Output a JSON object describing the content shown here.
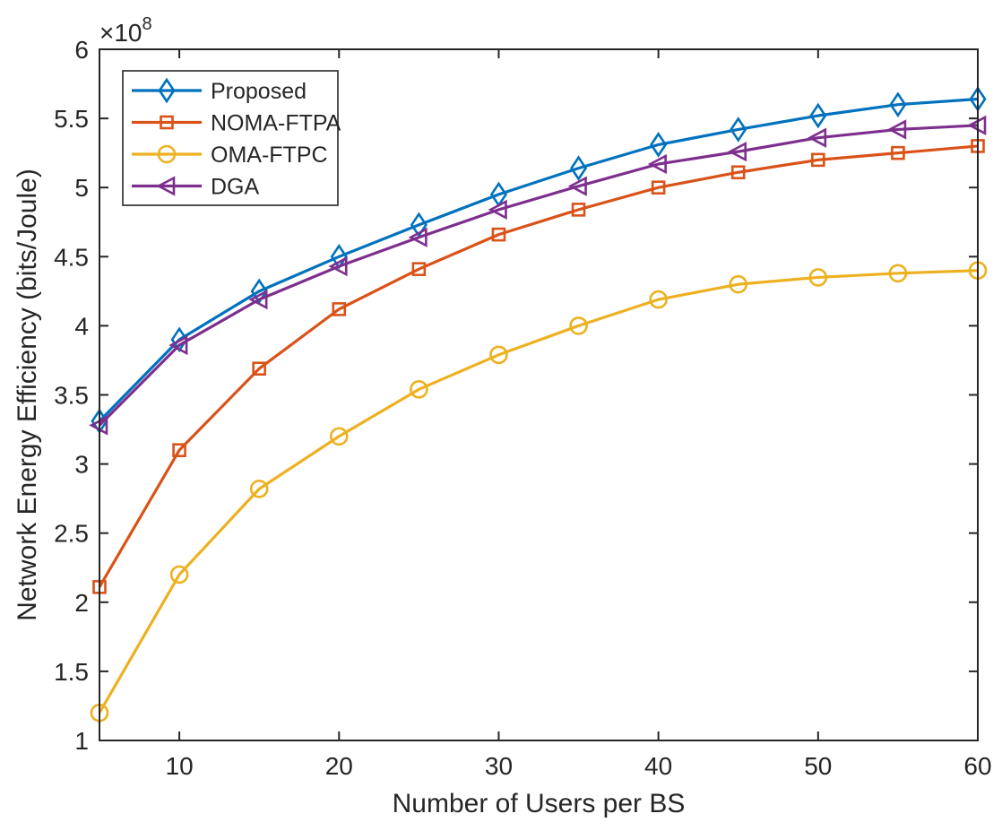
{
  "chart_data": {
    "type": "line",
    "title": "",
    "xlabel": "Number of Users per BS",
    "ylabel": "Network Energy Efficiency (bits/Joule)",
    "y_multiplier_label": "×10",
    "y_multiplier_exponent": "8",
    "xlim": [
      5,
      60
    ],
    "ylim": [
      1,
      6
    ],
    "x_ticks": [
      10,
      20,
      30,
      40,
      50,
      60
    ],
    "x_tick_labels": [
      "10",
      "20",
      "30",
      "40",
      "50",
      "60"
    ],
    "y_ticks": [
      1,
      1.5,
      2,
      2.5,
      3,
      3.5,
      4,
      4.5,
      5,
      5.5,
      6
    ],
    "y_tick_labels": [
      "1",
      "1.5",
      "2",
      "2.5",
      "3",
      "3.5",
      "4",
      "4.5",
      "5",
      "5.5",
      "6"
    ],
    "grid": false,
    "legend_position": "top-left",
    "x": [
      5,
      10,
      15,
      20,
      25,
      30,
      35,
      40,
      45,
      50,
      55,
      60
    ],
    "series": [
      {
        "name": "Proposed",
        "marker": "diamond",
        "color": "#0072BD",
        "values": [
          3.31,
          3.9,
          4.25,
          4.5,
          4.73,
          4.95,
          5.14,
          5.31,
          5.42,
          5.52,
          5.6,
          5.64
        ]
      },
      {
        "name": "NOMA-FTPA",
        "marker": "square",
        "color": "#D95319",
        "values": [
          2.11,
          3.1,
          3.69,
          4.12,
          4.41,
          4.66,
          4.84,
          5.0,
          5.11,
          5.2,
          5.25,
          5.3
        ]
      },
      {
        "name": "OMA-FTPC",
        "marker": "circle",
        "color": "#EDB120",
        "values": [
          1.2,
          2.2,
          2.82,
          3.2,
          3.54,
          3.79,
          4.0,
          4.19,
          4.3,
          4.35,
          4.38,
          4.4
        ]
      },
      {
        "name": "DGA",
        "marker": "triangle-left",
        "color": "#7E2F8E",
        "values": [
          3.28,
          3.86,
          4.19,
          4.43,
          4.64,
          4.84,
          5.01,
          5.17,
          5.26,
          5.36,
          5.42,
          5.45
        ]
      }
    ]
  }
}
